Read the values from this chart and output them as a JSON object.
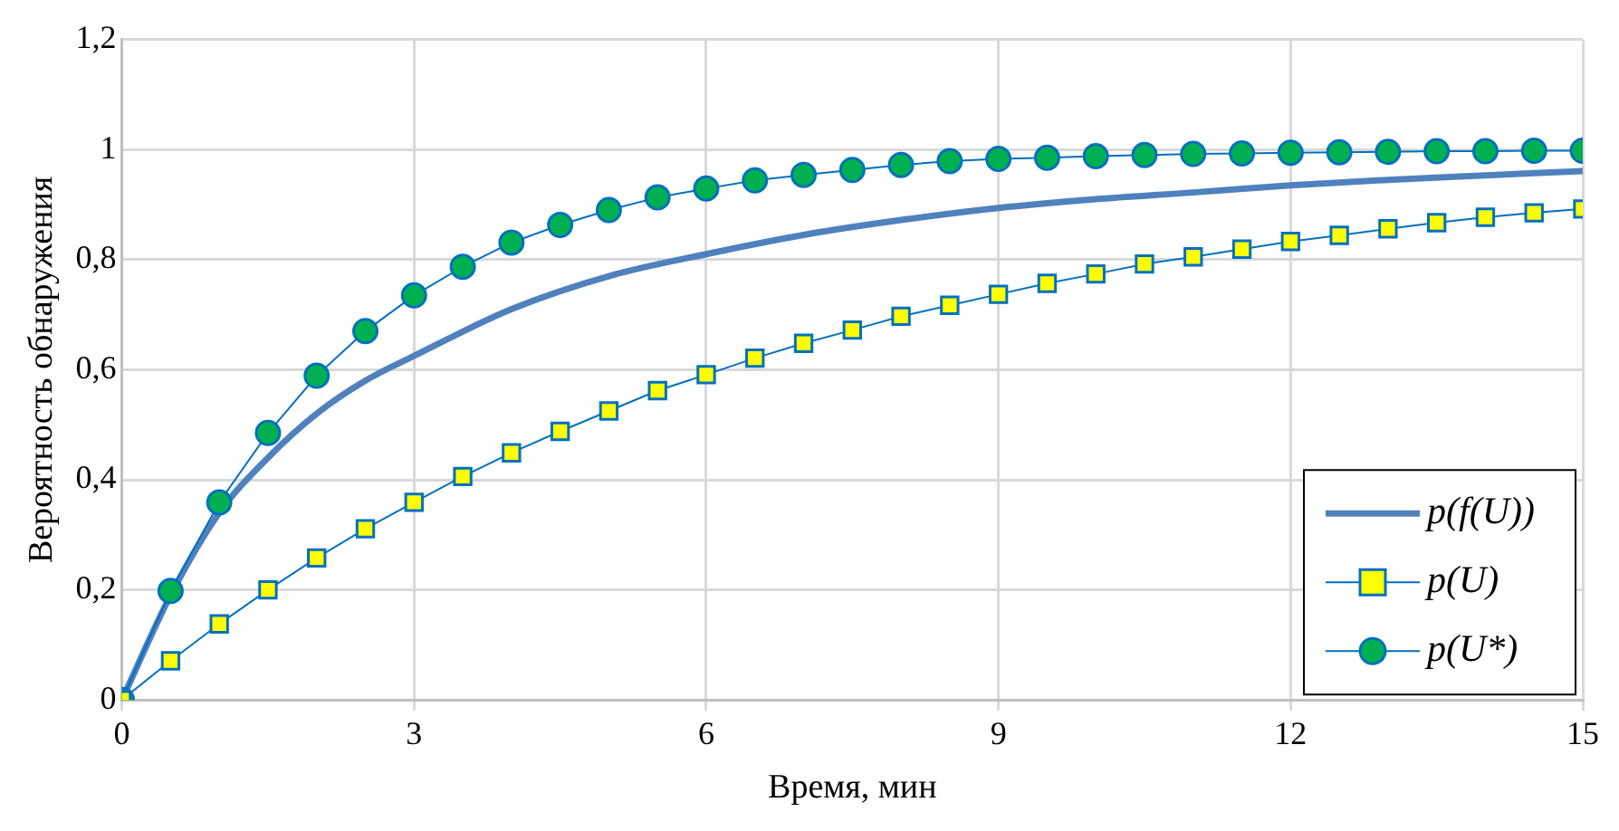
{
  "chart_data": {
    "type": "line",
    "xlabel": "Время, мин",
    "ylabel": "Вероятность обнаружения",
    "xlim": [
      0,
      15
    ],
    "xticks": [
      0,
      3,
      6,
      9,
      12,
      15
    ],
    "ylim": [
      0,
      1.2
    ],
    "yticks": [
      0,
      {
        "value": 0.2,
        "label": "0,2"
      },
      {
        "value": 0.4,
        "label": "0,4"
      },
      {
        "value": 0.6,
        "label": "0,6"
      },
      {
        "value": 0.8,
        "label": "0,8"
      },
      1,
      {
        "value": 1.2,
        "label": "1,2"
      }
    ],
    "grid": true,
    "legend": "bottom right",
    "series": [
      {
        "name": "p(f(U))",
        "color": "#4f81bd",
        "marker": "none",
        "x": [
          0,
          0.5,
          1,
          1.5,
          2,
          2.5,
          3,
          4,
          5,
          6,
          7,
          8,
          9,
          10,
          11,
          12,
          13,
          14,
          15
        ],
        "values": [
          0,
          0.19,
          0.34,
          0.44,
          0.52,
          0.58,
          0.625,
          0.71,
          0.77,
          0.81,
          0.845,
          0.872,
          0.894,
          0.91,
          0.922,
          0.935,
          0.945,
          0.953,
          0.961
        ]
      },
      {
        "name": "p(U)",
        "color": "#ffff00",
        "marker": "square",
        "x": [
          0,
          0.5,
          1,
          1.5,
          2,
          2.5,
          3,
          3.5,
          4,
          4.5,
          5,
          5.5,
          6,
          6.5,
          7,
          7.5,
          8,
          8.5,
          9,
          9.5,
          10,
          10.5,
          11,
          11.5,
          12,
          12.5,
          13,
          13.5,
          14,
          14.5,
          15
        ],
        "values": [
          0,
          0.071,
          0.138,
          0.2,
          0.258,
          0.311,
          0.359,
          0.406,
          0.449,
          0.488,
          0.525,
          0.562,
          0.591,
          0.621,
          0.648,
          0.672,
          0.697,
          0.717,
          0.737,
          0.757,
          0.774,
          0.792,
          0.805,
          0.819,
          0.833,
          0.844,
          0.856,
          0.867,
          0.877,
          0.885,
          0.892
        ]
      },
      {
        "name": "p(U*)",
        "color": "#00b050",
        "marker": "circle",
        "x": [
          0,
          0.5,
          1,
          1.5,
          2,
          2.5,
          3,
          3.5,
          4,
          4.5,
          5,
          5.5,
          6,
          6.5,
          7,
          7.5,
          8,
          8.5,
          9,
          9.5,
          10,
          10.5,
          11,
          11.5,
          12,
          12.5,
          13,
          13.5,
          14,
          14.5,
          15
        ],
        "values": [
          0,
          0.198,
          0.359,
          0.485,
          0.589,
          0.67,
          0.735,
          0.787,
          0.831,
          0.863,
          0.89,
          0.913,
          0.929,
          0.944,
          0.954,
          0.963,
          0.972,
          0.979,
          0.983,
          0.985,
          0.988,
          0.99,
          0.992,
          0.993,
          0.994,
          0.995,
          0.996,
          0.997,
          0.997,
          0.998,
          0.998
        ]
      }
    ]
  }
}
